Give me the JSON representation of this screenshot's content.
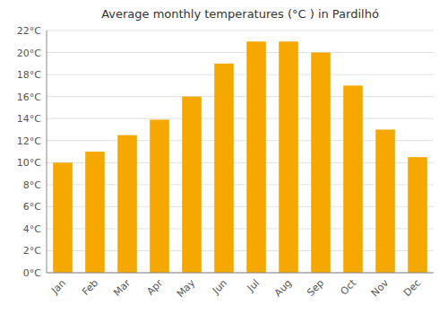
{
  "chart_data": {
    "type": "bar",
    "title": "Average monthly temperatures (°C ) in Pardilhó",
    "categories": [
      "Jan",
      "Feb",
      "Mar",
      "Apr",
      "May",
      "Jun",
      "Jul",
      "Aug",
      "Sep",
      "Oct",
      "Nov",
      "Dec"
    ],
    "values": [
      10.0,
      11.0,
      12.5,
      13.9,
      16.0,
      19.0,
      21.0,
      21.0,
      20.0,
      17.0,
      13.0,
      10.5
    ],
    "color": "#F5A800",
    "ylim": [
      0,
      22
    ],
    "yticks": [
      {
        "value": 0,
        "label": "0°C"
      },
      {
        "value": 2,
        "label": "2°C"
      },
      {
        "value": 4,
        "label": "4°C"
      },
      {
        "value": 6,
        "label": "6°C"
      },
      {
        "value": 8,
        "label": "8°C"
      },
      {
        "value": 10,
        "label": "10°C"
      },
      {
        "value": 12,
        "label": "12°C"
      },
      {
        "value": 14,
        "label": "14°C"
      },
      {
        "value": 16,
        "label": "16°C"
      },
      {
        "value": 18,
        "label": "18°C"
      },
      {
        "value": 20,
        "label": "20°C"
      },
      {
        "value": 22,
        "label": "22°C"
      }
    ],
    "grid": true
  }
}
